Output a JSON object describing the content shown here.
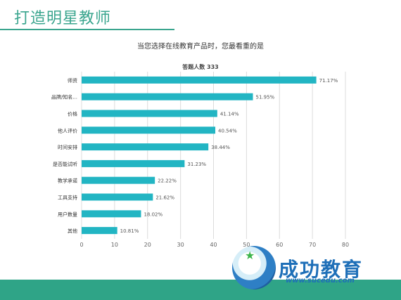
{
  "slide": {
    "title": "打造明星教师"
  },
  "chart_data": {
    "type": "bar",
    "orientation": "horizontal",
    "title": "当您选择在线教育产品时，您最看重的是",
    "subtitle": "答题人数 333",
    "categories": [
      "师资",
      "品牌/知名...",
      "价格",
      "他人评价",
      "时间安排",
      "是否能试听",
      "教学承诺",
      "工具支持",
      "用户数量",
      "其他"
    ],
    "values": [
      71.17,
      51.95,
      41.14,
      40.54,
      38.44,
      31.23,
      22.22,
      21.62,
      18.02,
      10.81
    ],
    "value_labels": [
      "71.17%",
      "51.95%",
      "41.14%",
      "40.54%",
      "38.44%",
      "31.23%",
      "22.22%",
      "21.62%",
      "18.02%",
      "10.81%"
    ],
    "xlim": [
      0,
      80
    ],
    "xticks": [
      "0",
      "10",
      "20",
      "30",
      "40",
      "50",
      "60",
      "70",
      "80"
    ],
    "grid": true,
    "bar_color": "#22b5c3"
  },
  "logo": {
    "name": "成功教育",
    "url": "www.sucedu.com"
  },
  "colors": {
    "accent": "#3aa58e",
    "footer": "#2fa487"
  }
}
